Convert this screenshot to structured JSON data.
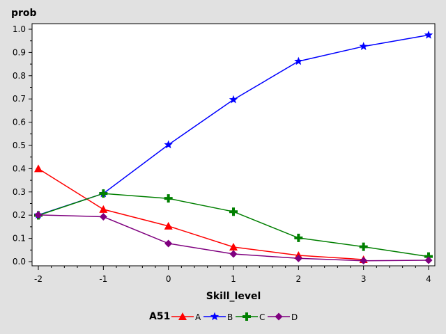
{
  "chart_data": {
    "type": "line",
    "title": "",
    "xlabel": "Skill_level",
    "ylabel": "prob",
    "x": [
      -2,
      -1,
      0,
      1,
      2,
      3,
      4
    ],
    "xlim": [
      -2,
      4
    ],
    "ylim": [
      0,
      1.0
    ],
    "x_ticks": [
      "-2",
      "-1",
      "0",
      "1",
      "2",
      "3",
      "4"
    ],
    "y_ticks": [
      "0.0",
      "0.1",
      "0.2",
      "0.3",
      "0.4",
      "0.5",
      "0.6",
      "0.7",
      "0.8",
      "0.9",
      "1.0"
    ],
    "grid": false,
    "legend": {
      "title": "A51",
      "placement": "bottom"
    },
    "series": [
      {
        "name": "A",
        "color": "#ff0000",
        "marker": "triangle",
        "values": [
          0.4,
          0.225,
          0.153,
          0.063,
          0.027,
          0.009,
          null
        ]
      },
      {
        "name": "B",
        "color": "#0000ff",
        "marker": "star",
        "values": [
          0.201,
          0.293,
          0.503,
          0.697,
          0.862,
          0.926,
          0.975
        ]
      },
      {
        "name": "C",
        "color": "#007f00",
        "marker": "plus",
        "values": [
          0.199,
          0.293,
          0.272,
          0.215,
          0.102,
          0.064,
          0.022
        ]
      },
      {
        "name": "D",
        "color": "#7f007f",
        "marker": "diamond",
        "values": [
          0.201,
          0.193,
          0.078,
          0.033,
          0.014,
          0.004,
          0.006
        ]
      }
    ]
  }
}
